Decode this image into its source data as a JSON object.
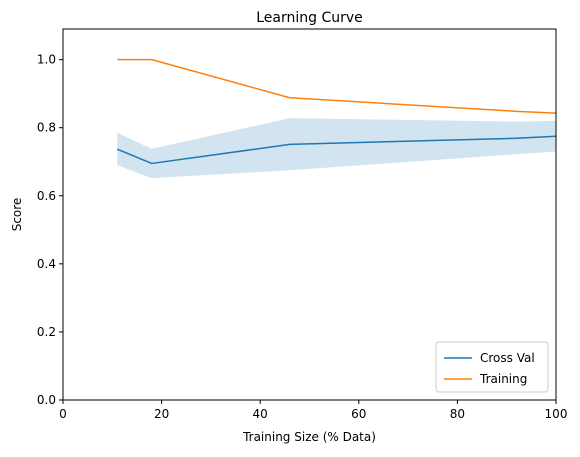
{
  "chart_data": {
    "type": "line",
    "title": "Learning Curve",
    "xlabel": "Training Size (% Data)",
    "ylabel": "Score",
    "xlim": [
      0,
      100
    ],
    "ylim": [
      0,
      1.09
    ],
    "xticks": [
      0,
      20,
      40,
      60,
      80,
      100
    ],
    "xtick_labels": [
      "0",
      "20",
      "40",
      "60",
      "80",
      "100"
    ],
    "yticks": [
      0.0,
      0.2,
      0.4,
      0.6,
      0.8,
      1.0
    ],
    "ytick_labels": [
      "0.0",
      "0.2",
      "0.4",
      "0.6",
      "0.8",
      "1.0"
    ],
    "grid": false,
    "legend_position": "lower-right",
    "x": [
      11,
      18,
      46,
      92,
      100
    ],
    "series": [
      {
        "name": "Cross Val",
        "color": "#1f77b4",
        "values": [
          0.737,
          0.695,
          0.751,
          0.769,
          0.775
        ],
        "band_lower": [
          0.69,
          0.652,
          0.675,
          0.722,
          0.73
        ],
        "band_upper": [
          0.785,
          0.738,
          0.828,
          0.818,
          0.82
        ],
        "band_color": "#1f77b4",
        "band_opacity": 0.2
      },
      {
        "name": "Training",
        "color": "#ff7f0e",
        "values": [
          1.0,
          1.0,
          0.888,
          0.848,
          0.843
        ]
      }
    ]
  }
}
